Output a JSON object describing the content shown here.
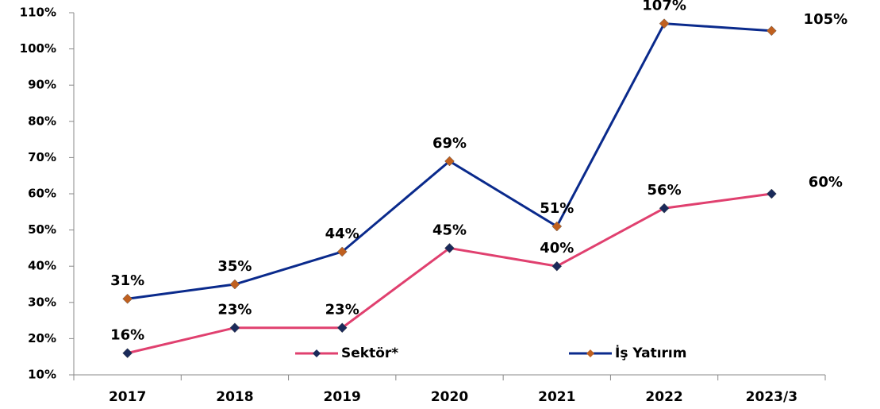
{
  "chart_data": {
    "type": "line",
    "categories": [
      "2017",
      "2018",
      "2019",
      "2020",
      "2021",
      "2022",
      "2023/3"
    ],
    "series": [
      {
        "name": "Sektör*",
        "color": "#e0406f",
        "marker_color": "#1a2a5a",
        "values": [
          16,
          23,
          23,
          45,
          40,
          56,
          60
        ],
        "value_labels": [
          "16%",
          "23%",
          "23%",
          "45%",
          "40%",
          "56%",
          "60%"
        ]
      },
      {
        "name": "İş Yatırım",
        "color": "#0a2a8c",
        "marker_color": "#c0601f",
        "values": [
          31,
          35,
          44,
          69,
          51,
          107,
          105
        ],
        "value_labels": [
          "31%",
          "35%",
          "44%",
          "69%",
          "51%",
          "107%",
          "105%"
        ]
      }
    ],
    "ylim": [
      10,
      110
    ],
    "yticks": [
      {
        "value": 10,
        "label": "10%"
      },
      {
        "value": 20,
        "label": "20%"
      },
      {
        "value": 30,
        "label": "30%"
      },
      {
        "value": 40,
        "label": "40%"
      },
      {
        "value": 50,
        "label": "50%"
      },
      {
        "value": 60,
        "label": "60%"
      },
      {
        "value": 70,
        "label": "70%"
      },
      {
        "value": 80,
        "label": "80%"
      },
      {
        "value": 90,
        "label": "90%"
      },
      {
        "value": 100,
        "label": "100%"
      },
      {
        "value": 110,
        "label": "110%"
      }
    ],
    "legend": "bottom"
  }
}
